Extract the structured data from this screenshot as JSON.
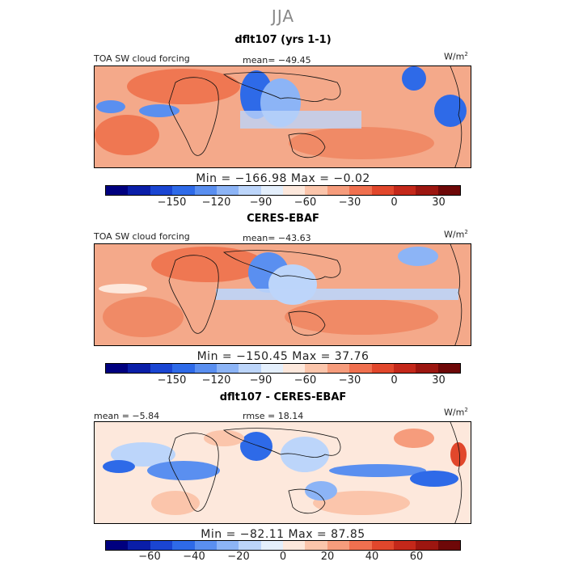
{
  "season": "JJA",
  "units": {
    "base": "W/m",
    "exp": "2"
  },
  "panels": [
    {
      "title": "dflt107 (yrs 1-1)",
      "label_left": "TOA SW cloud forcing",
      "stat": "mean= −49.45",
      "minmax": "Min = −166.98 Max =  −0.02"
    },
    {
      "title": "CERES-EBAF",
      "label_left": "TOA SW cloud forcing",
      "stat": "mean= −43.63",
      "minmax": "Min = −150.45 Max =  37.76"
    },
    {
      "title": "dflt107 - CERES-EBAF",
      "label_left": "mean =  −5.84",
      "stat": "rmse =  18.14",
      "minmax": "Min = −82.11 Max =  87.85"
    }
  ],
  "colorbars": [
    {
      "colors": [
        "#00007f",
        "#0a1ea8",
        "#1a45d2",
        "#2e6ae8",
        "#5a8ff0",
        "#8cb4f6",
        "#bcd5fa",
        "#e4effc",
        "#fde8dc",
        "#fbc5ab",
        "#f69c7c",
        "#f0704f",
        "#e1472c",
        "#c4281a",
        "#9c1610",
        "#6e0808"
      ],
      "ticks": [
        "−150",
        "−120",
        "−90",
        "−60",
        "−30",
        "0",
        "30"
      ],
      "tick_values": [
        -150,
        -120,
        -90,
        -60,
        -30,
        0,
        30
      ],
      "range": [
        -195,
        45
      ]
    },
    {
      "colors": [
        "#00007f",
        "#0a1ea8",
        "#1a45d2",
        "#2e6ae8",
        "#5a8ff0",
        "#8cb4f6",
        "#bcd5fa",
        "#e4effc",
        "#fde8dc",
        "#fbc5ab",
        "#f69c7c",
        "#f0704f",
        "#e1472c",
        "#c4281a",
        "#9c1610",
        "#6e0808"
      ],
      "ticks": [
        "−150",
        "−120",
        "−90",
        "−60",
        "−30",
        "0",
        "30"
      ],
      "tick_values": [
        -150,
        -120,
        -90,
        -60,
        -30,
        0,
        30
      ],
      "range": [
        -195,
        45
      ]
    },
    {
      "colors": [
        "#00007f",
        "#0a1ea8",
        "#1a45d2",
        "#2e6ae8",
        "#5a8ff0",
        "#8cb4f6",
        "#bcd5fa",
        "#e4effc",
        "#fde8dc",
        "#fbc5ab",
        "#f69c7c",
        "#f0704f",
        "#e1472c",
        "#c4281a",
        "#9c1610",
        "#6e0808"
      ],
      "ticks": [
        "−60",
        "−40",
        "−20",
        "0",
        "20",
        "40",
        "60"
      ],
      "tick_values": [
        -60,
        -40,
        -20,
        0,
        20,
        40,
        60
      ],
      "range": [
        -80,
        80
      ]
    }
  ],
  "chart_data": {
    "type": "heatmap",
    "title": "JJA",
    "description_of_variable": "TOA SW cloud forcing",
    "panels": [
      {
        "name": "dflt107 (yrs 1-1)",
        "mean": -49.45,
        "min": -166.98,
        "max": -0.02
      },
      {
        "name": "CERES-EBAF",
        "mean": -43.63,
        "min": -150.45,
        "max": 37.76
      },
      {
        "name": "dflt107 - CERES-EBAF",
        "mean": -5.84,
        "rmse": 18.14,
        "min": -82.11,
        "max": 87.85
      }
    ]
  }
}
